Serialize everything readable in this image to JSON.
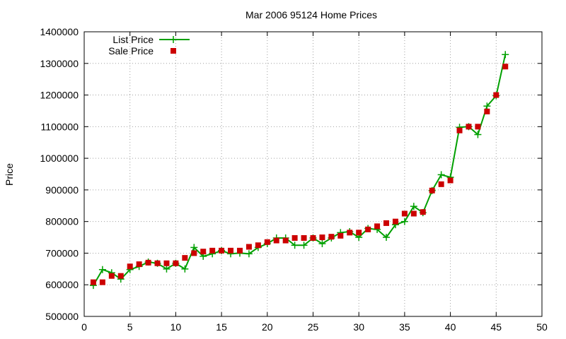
{
  "chart_data": {
    "type": "line",
    "title": "Mar 2006 95124 Home Prices",
    "xlabel": "",
    "ylabel": "Price",
    "xlim": [
      0,
      50
    ],
    "ylim": [
      500000,
      1400000
    ],
    "xticks": [
      0,
      5,
      10,
      15,
      20,
      25,
      30,
      35,
      40,
      45,
      50
    ],
    "yticks": [
      500000,
      600000,
      700000,
      800000,
      900000,
      1000000,
      1100000,
      1200000,
      1300000,
      1400000
    ],
    "grid": true,
    "legend_position": "top-left",
    "series": [
      {
        "name": "List Price",
        "style": "line-plus",
        "color": "#00a000",
        "points": [
          [
            1,
            598000
          ],
          [
            2,
            648000
          ],
          [
            3,
            638000
          ],
          [
            4,
            618000
          ],
          [
            5,
            648000
          ],
          [
            6,
            658000
          ],
          [
            7,
            672000
          ],
          [
            8,
            668000
          ],
          [
            9,
            650000
          ],
          [
            10,
            668000
          ],
          [
            11,
            650000
          ],
          [
            12,
            718000
          ],
          [
            13,
            690000
          ],
          [
            14,
            698000
          ],
          [
            15,
            708000
          ],
          [
            16,
            698000
          ],
          [
            17,
            700000
          ],
          [
            18,
            698000
          ],
          [
            19,
            718000
          ],
          [
            20,
            730000
          ],
          [
            21,
            748000
          ],
          [
            22,
            748000
          ],
          [
            23,
            725000
          ],
          [
            24,
            725000
          ],
          [
            25,
            748000
          ],
          [
            26,
            730000
          ],
          [
            27,
            748000
          ],
          [
            28,
            765000
          ],
          [
            29,
            768000
          ],
          [
            30,
            750000
          ],
          [
            31,
            778000
          ],
          [
            32,
            775000
          ],
          [
            33,
            750000
          ],
          [
            34,
            790000
          ],
          [
            35,
            800000
          ],
          [
            36,
            848000
          ],
          [
            37,
            828000
          ],
          [
            38,
            898000
          ],
          [
            39,
            948000
          ],
          [
            40,
            940000
          ],
          [
            41,
            1098000
          ],
          [
            42,
            1100000
          ],
          [
            43,
            1075000
          ],
          [
            44,
            1165000
          ],
          [
            45,
            1198000
          ],
          [
            46,
            1328000
          ]
        ]
      },
      {
        "name": "Sale Price",
        "style": "square",
        "color": "#cc0000",
        "points": [
          [
            1,
            608000
          ],
          [
            2,
            608000
          ],
          [
            3,
            628000
          ],
          [
            4,
            628000
          ],
          [
            5,
            658000
          ],
          [
            6,
            665000
          ],
          [
            7,
            670000
          ],
          [
            8,
            668000
          ],
          [
            9,
            668000
          ],
          [
            10,
            668000
          ],
          [
            11,
            685000
          ],
          [
            12,
            700000
          ],
          [
            13,
            705000
          ],
          [
            14,
            708000
          ],
          [
            15,
            708000
          ],
          [
            16,
            708000
          ],
          [
            17,
            708000
          ],
          [
            18,
            720000
          ],
          [
            19,
            725000
          ],
          [
            20,
            735000
          ],
          [
            21,
            740000
          ],
          [
            22,
            740000
          ],
          [
            23,
            748000
          ],
          [
            24,
            748000
          ],
          [
            25,
            748000
          ],
          [
            26,
            750000
          ],
          [
            27,
            752000
          ],
          [
            28,
            755000
          ],
          [
            29,
            765000
          ],
          [
            30,
            765000
          ],
          [
            31,
            775000
          ],
          [
            32,
            785000
          ],
          [
            33,
            795000
          ],
          [
            34,
            800000
          ],
          [
            35,
            825000
          ],
          [
            36,
            825000
          ],
          [
            37,
            830000
          ],
          [
            38,
            898000
          ],
          [
            39,
            918000
          ],
          [
            40,
            930000
          ],
          [
            41,
            1088000
          ],
          [
            42,
            1100000
          ],
          [
            43,
            1100000
          ],
          [
            44,
            1148000
          ],
          [
            45,
            1200000
          ],
          [
            46,
            1290000
          ]
        ]
      }
    ]
  }
}
